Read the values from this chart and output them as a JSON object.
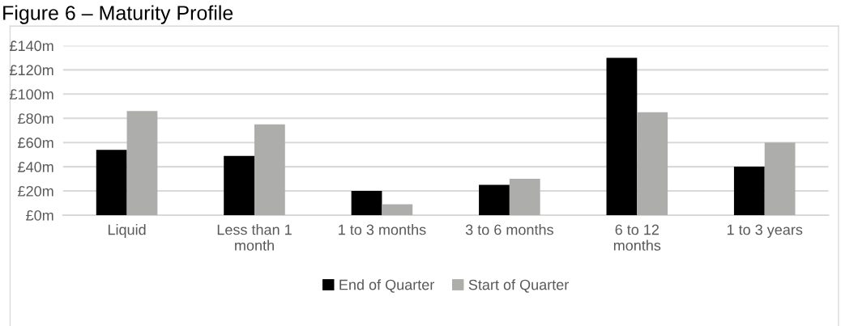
{
  "chart_data": {
    "type": "bar",
    "title": "Figure 6 – Maturity Profile",
    "categories": [
      "Liquid",
      "Less than 1\nmonth",
      "1 to 3 months",
      "3 to 6 months",
      "6 to 12\nmonths",
      "1 to 3 years"
    ],
    "series": [
      {
        "name": "End of Quarter",
        "color": "#000000",
        "values": [
          54,
          49,
          20,
          25,
          130,
          40
        ]
      },
      {
        "name": "Start of Quarter",
        "color": "#adadab",
        "values": [
          86,
          75,
          9,
          30,
          85,
          60
        ]
      }
    ],
    "ylim": [
      0,
      140
    ],
    "yticks": [
      {
        "value": 0,
        "label": "£0m"
      },
      {
        "value": 20,
        "label": "£20m"
      },
      {
        "value": 40,
        "label": "£40m"
      },
      {
        "value": 60,
        "label": "£60m"
      },
      {
        "value": 80,
        "label": "£80m"
      },
      {
        "value": 100,
        "label": "£100m"
      },
      {
        "value": 120,
        "label": "£120m"
      },
      {
        "value": 140,
        "label": "£140m"
      }
    ],
    "grid": "y",
    "legend": "bottom"
  }
}
